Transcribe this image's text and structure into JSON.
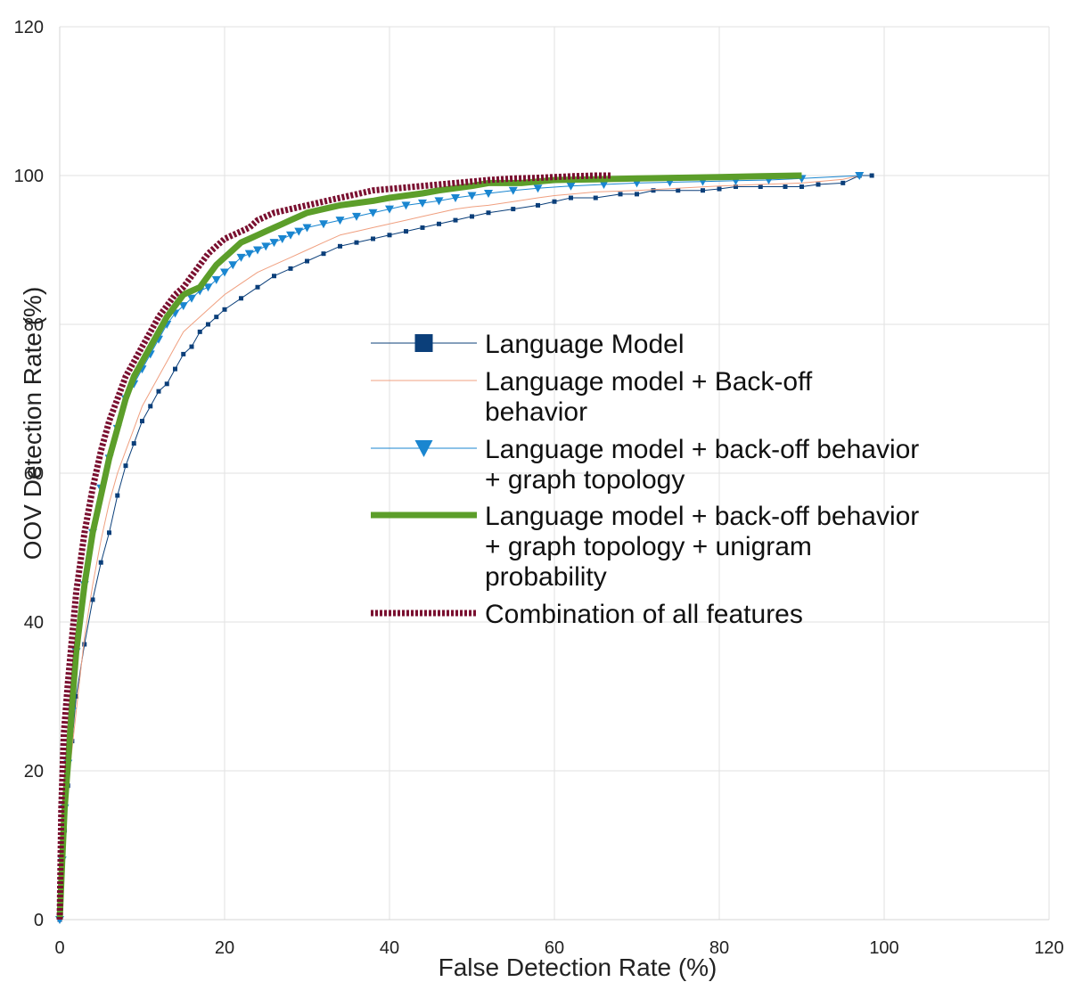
{
  "chart_data": {
    "type": "line",
    "xlabel": "False Detection Rate (%)",
    "ylabel": "OOV Detection Rate (%)",
    "xlim": [
      0,
      120
    ],
    "ylim": [
      0,
      120
    ],
    "xticks": [
      0,
      20,
      40,
      60,
      80,
      100,
      120
    ],
    "yticks": [
      0,
      20,
      40,
      60,
      80,
      100,
      120
    ],
    "grid": true,
    "legend": "center-right",
    "series": [
      {
        "name": "Language Model",
        "color": "#0b3f7a",
        "marker": "square",
        "x": [
          0,
          0.3,
          0.6,
          1,
          1.5,
          2,
          3,
          4,
          5,
          6,
          7,
          8,
          9,
          10,
          11,
          12,
          13,
          14,
          15,
          16,
          17,
          18,
          19,
          20,
          22,
          24,
          26,
          28,
          30,
          32,
          34,
          36,
          38,
          40,
          42,
          44,
          46,
          48,
          50,
          52,
          55,
          58,
          60,
          62,
          65,
          68,
          70,
          72,
          75,
          78,
          80,
          82,
          85,
          88,
          90,
          92,
          95,
          97,
          98.5
        ],
        "y": [
          0,
          6,
          12,
          18,
          24,
          30,
          37,
          43,
          48,
          52,
          57,
          61,
          64,
          67,
          69,
          71,
          72,
          74,
          76,
          77,
          79,
          80,
          81,
          82,
          83.5,
          85,
          86.5,
          87.5,
          88.5,
          89.5,
          90.5,
          91,
          91.5,
          92,
          92.5,
          93,
          93.5,
          94,
          94.5,
          95,
          95.5,
          96,
          96.5,
          97,
          97,
          97.5,
          97.5,
          98,
          98,
          98,
          98.2,
          98.5,
          98.5,
          98.5,
          98.5,
          98.8,
          99,
          100,
          100
        ]
      },
      {
        "name": "Language model + Back-off behavior",
        "color": "#f0a080",
        "marker": "none",
        "x": [
          0,
          0.5,
          1,
          2,
          3,
          4,
          5,
          6,
          7,
          8,
          9,
          10,
          11,
          12,
          13,
          14,
          15,
          16,
          18,
          20,
          22,
          24,
          26,
          28,
          30,
          32,
          34,
          36,
          38,
          40,
          42,
          44,
          46,
          48,
          50,
          52,
          55,
          58,
          60,
          62,
          65,
          70,
          75,
          80,
          85,
          90,
          95,
          97
        ],
        "y": [
          0,
          10,
          18,
          28,
          38,
          45,
          51,
          56,
          60,
          63,
          66,
          69,
          71,
          73,
          75,
          77,
          79,
          80,
          82,
          84,
          85.5,
          87,
          88,
          89,
          90,
          91,
          92,
          92.5,
          93,
          93.5,
          94,
          94.5,
          95,
          95.5,
          95.8,
          96,
          96.5,
          97,
          97.3,
          97.5,
          97.8,
          98,
          98.3,
          98.6,
          98.8,
          99,
          99.5,
          100
        ]
      },
      {
        "name": "Language model + back-off behavior + graph topology",
        "color": "#1a86d0",
        "marker": "triangle-down",
        "x": [
          0,
          0.3,
          0.6,
          1,
          1.5,
          2,
          3,
          4,
          5,
          6,
          7,
          8,
          9,
          10,
          11,
          12,
          13,
          14,
          15,
          16,
          17,
          18,
          19,
          20,
          21,
          22,
          23,
          24,
          25,
          26,
          27,
          28,
          29,
          30,
          32,
          34,
          36,
          38,
          40,
          42,
          44,
          46,
          48,
          50,
          52,
          55,
          58,
          62,
          66,
          70,
          74,
          78,
          82,
          86,
          90,
          97
        ],
        "y": [
          0,
          8,
          15,
          21,
          28,
          36,
          45,
          52,
          58,
          62,
          66,
          70,
          72,
          74,
          76,
          78,
          80,
          81.5,
          82.5,
          83.5,
          84.5,
          85,
          86,
          87,
          88,
          89,
          89.5,
          90,
          90.5,
          91,
          91.5,
          92,
          92.5,
          93,
          93.5,
          94,
          94.5,
          95,
          95.5,
          96,
          96.3,
          96.6,
          97,
          97.3,
          97.6,
          98,
          98.3,
          98.6,
          98.8,
          99,
          99.1,
          99.2,
          99.3,
          99.4,
          99.6,
          100
        ]
      },
      {
        "name": "Language model + back-off behavior + graph topology + unigram probability",
        "color": "#5c9e2a",
        "marker": "none",
        "x": [
          0,
          0.3,
          0.6,
          1,
          1.5,
          2,
          3,
          4,
          5,
          6,
          7,
          8,
          9,
          10,
          11,
          12,
          13,
          14,
          15,
          16,
          17,
          18,
          19,
          20,
          21,
          22,
          23,
          24,
          25,
          26,
          27,
          28,
          29,
          30,
          32,
          34,
          36,
          38,
          40,
          42,
          44,
          46,
          48,
          50,
          52,
          54,
          56,
          58,
          60,
          65,
          70,
          75,
          80,
          85,
          90
        ],
        "y": [
          0,
          8,
          15,
          21,
          29,
          36,
          45,
          52,
          57,
          62,
          66,
          70,
          73,
          75,
          77,
          79,
          81,
          82.5,
          84,
          84.5,
          85,
          86.5,
          88,
          89,
          90,
          91,
          91.5,
          92,
          92.5,
          93,
          93.5,
          94,
          94.5,
          95,
          95.5,
          96,
          96.3,
          96.6,
          97,
          97.3,
          97.6,
          98,
          98.3,
          98.6,
          99,
          99,
          99,
          99.2,
          99.4,
          99.5,
          99.6,
          99.7,
          99.8,
          99.9,
          100
        ]
      },
      {
        "name": "Combination of all features",
        "color": "#7a1030",
        "marker": "none",
        "x": [
          0,
          0.2,
          0.5,
          1,
          1.5,
          2,
          3,
          4,
          5,
          6,
          7,
          8,
          9,
          10,
          11,
          12,
          13,
          14,
          15,
          16,
          17,
          18,
          19,
          20,
          21,
          22,
          23,
          24,
          26,
          28,
          30,
          32,
          34,
          36,
          38,
          40,
          42,
          44,
          46,
          48,
          50,
          52,
          55,
          58,
          60,
          62,
          65,
          67
        ],
        "y": [
          0,
          15,
          25,
          32,
          38,
          44,
          52,
          58,
          63,
          67,
          70,
          73,
          75,
          77,
          79,
          81,
          82.5,
          84,
          85,
          86.5,
          88,
          89.5,
          90.5,
          91.5,
          92,
          92.5,
          93,
          94,
          95,
          95.5,
          96,
          96.5,
          97,
          97.5,
          98,
          98.2,
          98.4,
          98.6,
          98.8,
          99,
          99.2,
          99.4,
          99.6,
          99.7,
          99.8,
          99.9,
          100,
          100
        ]
      }
    ]
  }
}
